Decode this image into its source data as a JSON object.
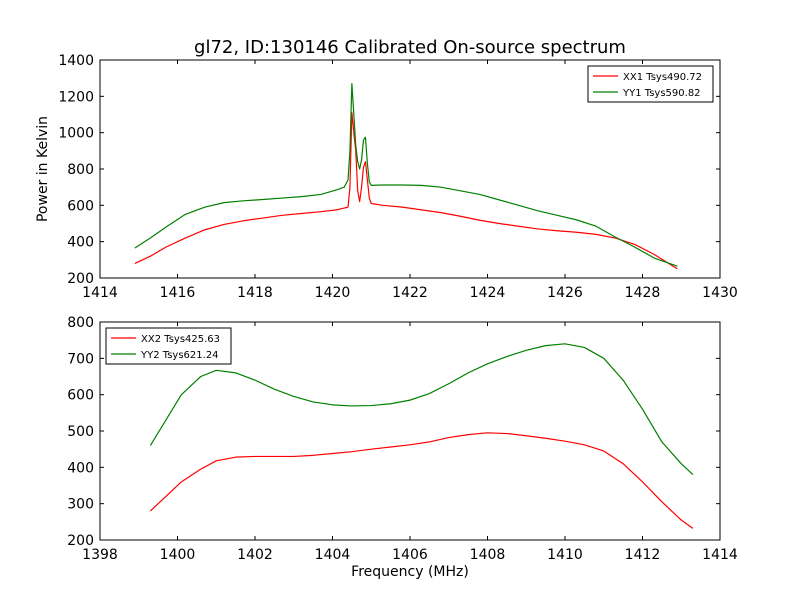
{
  "title": "gl72, ID:130146 Calibrated On-source spectrum",
  "xlabel": "Frequency (MHz)",
  "ylabel": "Power in Kelvin",
  "colors": {
    "xx": "#ff0000",
    "yy": "#008000"
  },
  "chart_data": [
    {
      "type": "line",
      "title": "gl72, ID:130146 Calibrated On-source spectrum",
      "ylabel": "Power in Kelvin",
      "xlim": [
        1414,
        1430
      ],
      "ylim": [
        200,
        1400
      ],
      "xticks": [
        1414,
        1416,
        1418,
        1420,
        1422,
        1424,
        1426,
        1428,
        1430
      ],
      "yticks": [
        200,
        400,
        600,
        800,
        1000,
        1200,
        1400
      ],
      "legend_position": "top-right",
      "series": [
        {
          "name": "XX1 Tsys490.72",
          "color": "#ff0000",
          "x": [
            1414.9,
            1415.3,
            1415.7,
            1416.2,
            1416.7,
            1417.2,
            1417.7,
            1418.2,
            1418.7,
            1419.2,
            1419.7,
            1420.1,
            1420.3,
            1420.4,
            1420.45,
            1420.5,
            1420.55,
            1420.6,
            1420.65,
            1420.7,
            1420.75,
            1420.8,
            1420.85,
            1420.9,
            1420.95,
            1421.0,
            1421.3,
            1421.8,
            1422.3,
            1422.8,
            1423.3,
            1423.8,
            1424.3,
            1424.8,
            1425.3,
            1425.8,
            1426.3,
            1426.8,
            1427.3,
            1427.8,
            1428.3,
            1428.9
          ],
          "values": [
            280,
            320,
            370,
            420,
            465,
            495,
            515,
            530,
            545,
            555,
            565,
            575,
            585,
            590,
            700,
            1110,
            1000,
            900,
            680,
            620,
            700,
            810,
            840,
            740,
            640,
            610,
            600,
            590,
            575,
            560,
            540,
            518,
            500,
            485,
            470,
            460,
            452,
            440,
            420,
            385,
            330,
            250
          ]
        },
        {
          "name": "YY1 Tsys590.82",
          "color": "#008000",
          "x": [
            1414.9,
            1415.3,
            1415.7,
            1416.2,
            1416.7,
            1417.2,
            1417.7,
            1418.2,
            1418.7,
            1419.2,
            1419.7,
            1420.1,
            1420.3,
            1420.4,
            1420.45,
            1420.5,
            1420.55,
            1420.6,
            1420.65,
            1420.7,
            1420.75,
            1420.8,
            1420.85,
            1420.9,
            1420.95,
            1421.0,
            1421.3,
            1421.8,
            1422.3,
            1422.8,
            1423.3,
            1423.8,
            1424.3,
            1424.8,
            1425.3,
            1425.8,
            1426.3,
            1426.8,
            1427.3,
            1427.8,
            1428.3,
            1428.9
          ],
          "values": [
            365,
            420,
            480,
            550,
            590,
            615,
            625,
            632,
            640,
            648,
            660,
            685,
            700,
            740,
            900,
            1270,
            1100,
            930,
            840,
            800,
            850,
            960,
            975,
            830,
            730,
            710,
            712,
            712,
            710,
            700,
            680,
            660,
            630,
            600,
            570,
            545,
            520,
            485,
            425,
            370,
            310,
            265
          ]
        }
      ]
    },
    {
      "type": "line",
      "xlabel": "Frequency (MHz)",
      "xlim": [
        1398,
        1414
      ],
      "ylim": [
        200,
        800
      ],
      "xticks": [
        1398,
        1400,
        1402,
        1404,
        1406,
        1408,
        1410,
        1412,
        1414
      ],
      "yticks": [
        200,
        300,
        400,
        500,
        600,
        700,
        800
      ],
      "legend_position": "top-left",
      "series": [
        {
          "name": "XX2 Tsys425.63",
          "color": "#ff0000",
          "x": [
            1399.3,
            1399.7,
            1400.1,
            1400.6,
            1401.0,
            1401.5,
            1402.0,
            1402.5,
            1403.0,
            1403.5,
            1404.0,
            1404.5,
            1405.0,
            1405.5,
            1406.0,
            1406.5,
            1407.0,
            1407.5,
            1408.0,
            1408.5,
            1409.0,
            1409.5,
            1410.0,
            1410.5,
            1411.0,
            1411.5,
            1412.0,
            1412.5,
            1413.0,
            1413.3
          ],
          "values": [
            280,
            320,
            360,
            395,
            418,
            428,
            430,
            430,
            430,
            433,
            438,
            443,
            450,
            456,
            462,
            470,
            482,
            490,
            495,
            493,
            487,
            480,
            472,
            462,
            445,
            410,
            360,
            305,
            255,
            232
          ]
        },
        {
          "name": "YY2 Tsys621.24",
          "color": "#008000",
          "x": [
            1399.3,
            1399.7,
            1400.1,
            1400.6,
            1401.0,
            1401.5,
            1402.0,
            1402.5,
            1403.0,
            1403.5,
            1404.0,
            1404.5,
            1405.0,
            1405.5,
            1406.0,
            1406.5,
            1407.0,
            1407.5,
            1408.0,
            1408.5,
            1409.0,
            1409.5,
            1410.0,
            1410.5,
            1411.0,
            1411.5,
            1412.0,
            1412.5,
            1413.0,
            1413.3
          ],
          "values": [
            460,
            530,
            600,
            650,
            667,
            660,
            640,
            615,
            595,
            580,
            572,
            569,
            570,
            575,
            585,
            603,
            630,
            660,
            685,
            705,
            722,
            735,
            740,
            730,
            700,
            640,
            560,
            470,
            410,
            380
          ]
        }
      ]
    }
  ]
}
